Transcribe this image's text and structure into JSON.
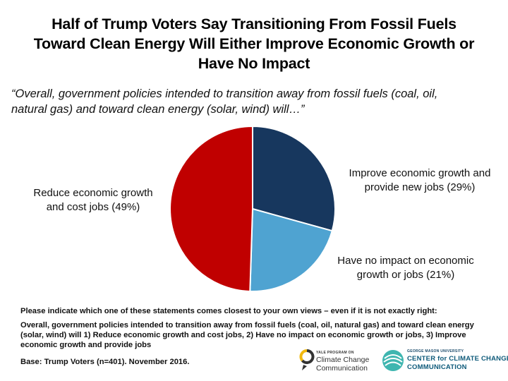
{
  "title_lines": [
    "Half of Trump Voters Say Transitioning From Fossil Fuels",
    "Toward Clean Energy Will Either Improve Economic Growth or",
    "Have No Impact"
  ],
  "question_lines": [
    "“Overall, government policies intended to transition away from fossil fuels (coal, oil,",
    "natural gas) and toward clean energy (solar, wind) will…”"
  ],
  "chart_data": {
    "type": "pie",
    "slices": [
      {
        "label_lines": [
          "Improve economic growth and",
          "provide new jobs (29%)"
        ],
        "value": 29,
        "color": "#17375e"
      },
      {
        "label_lines": [
          "Have no impact on economic",
          "growth or jobs (21%)"
        ],
        "value": 21,
        "color": "#4fa3d1"
      },
      {
        "label_lines": [
          "Reduce economic growth",
          "and cost jobs (49%)"
        ],
        "value": 49,
        "color": "#c00000"
      }
    ]
  },
  "footer": {
    "instruction": "Please indicate which one of these statements comes closest to your own views – even if it is not exactly right:",
    "statement_lines": [
      "Overall, government policies intended to transition away from fossil fuels (coal, oil, natural gas) and toward clean energy",
      "(solar, wind) will 1) Reduce economic growth and cost jobs, 2) Have no impact on economic growth or jobs, 3) Improve",
      "economic growth and provide jobs"
    ],
    "base": "Base: Trump Voters (n=401). November 2016."
  },
  "logos": {
    "yale": {
      "small": "YALE PROGRAM ON",
      "line1": "Climate Change",
      "line2": "Communication"
    },
    "gmu": {
      "small": "GEORGE MASON UNIVERSITY",
      "line1": "CENTER for CLIMATE CHANGE",
      "line2": "COMMUNICATION"
    }
  }
}
